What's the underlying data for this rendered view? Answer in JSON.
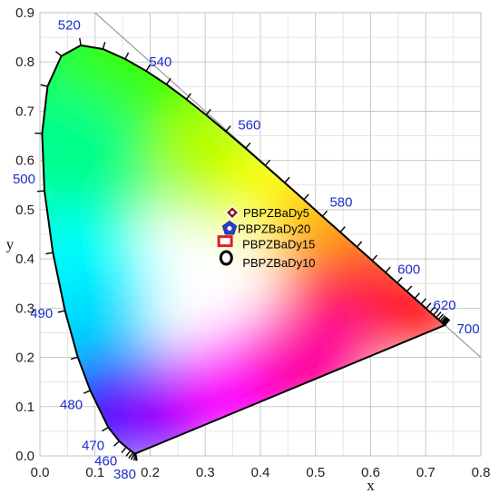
{
  "chart_data": {
    "type": "scatter",
    "title": "",
    "xlabel": "x",
    "ylabel": "y",
    "xlim": [
      0.0,
      0.8
    ],
    "ylim": [
      0.0,
      0.9
    ],
    "xticks": [
      "0.0",
      "0.1",
      "0.2",
      "0.3",
      "0.4",
      "0.5",
      "0.6",
      "0.7",
      "0.8"
    ],
    "yticks": [
      "0.0",
      "0.1",
      "0.2",
      "0.3",
      "0.4",
      "0.5",
      "0.6",
      "0.7",
      "0.8",
      "0.9"
    ],
    "grid": true,
    "background": "CIE 1931 chromaticity diagram",
    "locus": [
      [
        0.1741,
        0.005
      ],
      [
        0.1738,
        0.0049
      ],
      [
        0.1736,
        0.0049
      ],
      [
        0.1733,
        0.0048
      ],
      [
        0.1726,
        0.0048
      ],
      [
        0.1714,
        0.0051
      ],
      [
        0.1689,
        0.0069
      ],
      [
        0.1644,
        0.0109
      ],
      [
        0.1566,
        0.0177
      ],
      [
        0.144,
        0.0297
      ],
      [
        0.1241,
        0.0578
      ],
      [
        0.0913,
        0.1327
      ],
      [
        0.0687,
        0.2007
      ],
      [
        0.0454,
        0.295
      ],
      [
        0.0235,
        0.4127
      ],
      [
        0.0082,
        0.5384
      ],
      [
        0.0039,
        0.6548
      ],
      [
        0.0139,
        0.7502
      ],
      [
        0.0389,
        0.812
      ],
      [
        0.0743,
        0.8338
      ],
      [
        0.1142,
        0.8262
      ],
      [
        0.1547,
        0.8059
      ],
      [
        0.1929,
        0.7816
      ],
      [
        0.2296,
        0.7543
      ],
      [
        0.2658,
        0.7243
      ],
      [
        0.3016,
        0.6923
      ],
      [
        0.3373,
        0.6589
      ],
      [
        0.3731,
        0.6245
      ],
      [
        0.4087,
        0.5896
      ],
      [
        0.4441,
        0.5547
      ],
      [
        0.4788,
        0.5202
      ],
      [
        0.5125,
        0.4866
      ],
      [
        0.5448,
        0.4544
      ],
      [
        0.5752,
        0.4242
      ],
      [
        0.6029,
        0.3965
      ],
      [
        0.627,
        0.3725
      ],
      [
        0.6482,
        0.3514
      ],
      [
        0.6658,
        0.334
      ],
      [
        0.6801,
        0.3197
      ],
      [
        0.6915,
        0.3083
      ],
      [
        0.7006,
        0.2993
      ],
      [
        0.7079,
        0.292
      ],
      [
        0.714,
        0.2859
      ],
      [
        0.719,
        0.2809
      ],
      [
        0.723,
        0.277
      ],
      [
        0.726,
        0.274
      ],
      [
        0.7283,
        0.2717
      ],
      [
        0.73,
        0.27
      ],
      [
        0.7311,
        0.2689
      ],
      [
        0.732,
        0.268
      ],
      [
        0.7327,
        0.2673
      ],
      [
        0.7334,
        0.2666
      ],
      [
        0.734,
        0.266
      ],
      [
        0.7344,
        0.2656
      ],
      [
        0.7346,
        0.2654
      ],
      [
        0.7347,
        0.2653
      ]
    ],
    "wavelength_labels": [
      {
        "text": "380",
        "x": 0.1741,
        "y": 0.005
      },
      {
        "text": "460",
        "x": 0.144,
        "y": 0.0297
      },
      {
        "text": "470",
        "x": 0.1241,
        "y": 0.0578
      },
      {
        "text": "480",
        "x": 0.0913,
        "y": 0.1327
      },
      {
        "text": "490",
        "x": 0.0454,
        "y": 0.295
      },
      {
        "text": "500",
        "x": 0.0082,
        "y": 0.5384
      },
      {
        "text": "520",
        "x": 0.0743,
        "y": 0.8338
      },
      {
        "text": "540",
        "x": 0.2296,
        "y": 0.7543
      },
      {
        "text": "560",
        "x": 0.3731,
        "y": 0.6245
      },
      {
        "text": "580",
        "x": 0.5125,
        "y": 0.4866
      },
      {
        "text": "600",
        "x": 0.627,
        "y": 0.3725
      },
      {
        "text": "620",
        "x": 0.6915,
        "y": 0.3083
      },
      {
        "text": "700",
        "x": 0.7347,
        "y": 0.2653
      }
    ],
    "wavelength_label_color": "#1a2ecc",
    "series": [
      {
        "name": "PBPZBaDy5",
        "x": 0.349,
        "y": 0.494,
        "marker": "diamond",
        "color": "#8b1a1a"
      },
      {
        "name": "PBPZBaDy20",
        "x": 0.344,
        "y": 0.462,
        "marker": "pentagon",
        "color": "#2b3fc4"
      },
      {
        "name": "PBPZBaDy15",
        "x": 0.336,
        "y": 0.436,
        "marker": "square",
        "color": "#e02020"
      },
      {
        "name": "PBPZBaDy10",
        "x": 0.338,
        "y": 0.402,
        "marker": "circle",
        "color": "#000000"
      }
    ]
  }
}
